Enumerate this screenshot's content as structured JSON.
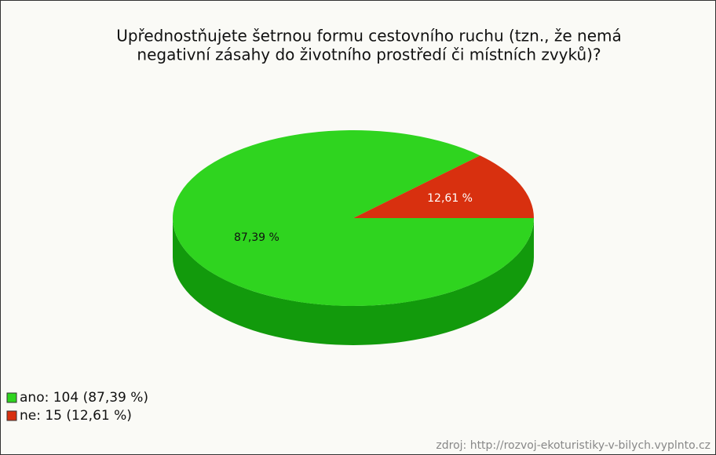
{
  "chart_data": {
    "type": "pie",
    "title": [
      "Upřednostňujete šetrnou formu cestovního ruchu (tzn., že nemá",
      "negativní zásahy do životního prostředí či místních zvyků)?"
    ],
    "categories": [
      "ano",
      "ne"
    ],
    "values": [
      87.39,
      12.61
    ],
    "value_labels": [
      "87,39 %",
      "12,61 %"
    ],
    "colors": [
      "#2fd41f",
      "#d8300f"
    ],
    "side_colors": [
      "#129a0c",
      "#9a1e08"
    ],
    "legend_labels": [
      "ano: 104 (87,39 %)",
      "ne: 15 (12,61 %)"
    ],
    "source": "zdroj: http://rozvoj-ekoturistiky-v-bilych.vyplnto.cz"
  }
}
